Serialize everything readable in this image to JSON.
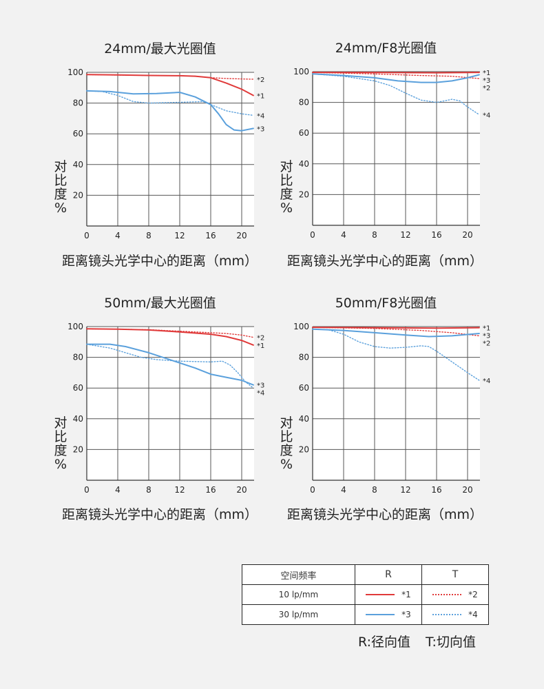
{
  "colors": {
    "red": "#e03a3a",
    "blue": "#5aa0dc",
    "grid": "#555555",
    "background": "#f2f2f2",
    "plot": "#ffffff"
  },
  "common": {
    "ylabel": "对比度%",
    "xlabel": "距离镜头光学中心的距离（mm）",
    "xticks": [
      0,
      4,
      8,
      12,
      16,
      20
    ],
    "yticks": [
      20,
      40,
      60,
      80,
      100
    ]
  },
  "legend": {
    "header": [
      "空间频率",
      "R",
      "T"
    ],
    "rows": [
      {
        "freq": "10 lp/mm",
        "r_key": "*1",
        "t_key": "*2"
      },
      {
        "freq": "30 lp/mm",
        "r_key": "*3",
        "t_key": "*4"
      }
    ],
    "footnote": [
      "R:径向值",
      "T:切向值"
    ]
  },
  "chart_data": [
    {
      "type": "line",
      "title": "24mm/最大光圈值",
      "xlabel": "距离镜头光学中心的距离（mm）",
      "ylabel": "对比度%",
      "xlim": [
        0,
        21.6
      ],
      "ylim": [
        0,
        100
      ],
      "series": [
        {
          "name": "*1",
          "style": "solid",
          "color": "red",
          "points": [
            [
              0,
              98.5
            ],
            [
              4,
              98.3
            ],
            [
              8,
              98
            ],
            [
              12,
              97.8
            ],
            [
              14,
              97.5
            ],
            [
              16,
              96.5
            ],
            [
              18,
              93
            ],
            [
              20,
              89
            ],
            [
              21.5,
              85
            ]
          ]
        },
        {
          "name": "*2",
          "style": "dotted",
          "color": "red",
          "points": [
            [
              0,
              98.5
            ],
            [
              4,
              98.2
            ],
            [
              8,
              98
            ],
            [
              12,
              97.8
            ],
            [
              14,
              97.5
            ],
            [
              16,
              96.5
            ],
            [
              18,
              96
            ],
            [
              20,
              95.7
            ],
            [
              21.5,
              95.5
            ]
          ]
        },
        {
          "name": "*3",
          "style": "solid",
          "color": "blue",
          "points": [
            [
              0,
              88
            ],
            [
              3,
              87.5
            ],
            [
              6,
              86
            ],
            [
              9,
              86.2
            ],
            [
              12,
              87
            ],
            [
              14,
              84
            ],
            [
              16,
              79
            ],
            [
              17,
              73
            ],
            [
              18,
              66
            ],
            [
              19,
              62.5
            ],
            [
              20,
              62
            ],
            [
              21.5,
              63.5
            ]
          ]
        },
        {
          "name": "*4",
          "style": "dotted",
          "color": "blue",
          "points": [
            [
              0,
              88
            ],
            [
              2,
              87.5
            ],
            [
              4,
              85
            ],
            [
              6,
              81
            ],
            [
              8,
              80
            ],
            [
              12,
              80.5
            ],
            [
              15,
              81
            ],
            [
              16,
              79
            ],
            [
              17,
              77
            ],
            [
              18,
              75
            ],
            [
              20,
              73
            ],
            [
              21.5,
              72
            ]
          ]
        }
      ],
      "label_order": [
        "*2",
        "*1",
        "*4",
        "*3"
      ]
    },
    {
      "type": "line",
      "title": "24mm/F8光圈值",
      "xlabel": "距离镜头光学中心的距离（mm）",
      "ylabel": "对比度%",
      "xlim": [
        0,
        21.6
      ],
      "ylim": [
        0,
        100
      ],
      "series": [
        {
          "name": "*1",
          "style": "solid",
          "color": "red",
          "points": [
            [
              0,
              99.5
            ],
            [
              8,
              99.4
            ],
            [
              16,
              99.3
            ],
            [
              21.5,
              99.5
            ]
          ]
        },
        {
          "name": "*2",
          "style": "dotted",
          "color": "red",
          "points": [
            [
              0,
              99.5
            ],
            [
              8,
              98.5
            ],
            [
              14,
              97.5
            ],
            [
              18,
              97
            ],
            [
              21.5,
              95.5
            ]
          ]
        },
        {
          "name": "*3",
          "style": "solid",
          "color": "blue",
          "points": [
            [
              0,
              98.5
            ],
            [
              4,
              97.5
            ],
            [
              8,
              96
            ],
            [
              11,
              94
            ],
            [
              14,
              93
            ],
            [
              16,
              93
            ],
            [
              18,
              94
            ],
            [
              20,
              96
            ],
            [
              21.5,
              98
            ]
          ]
        },
        {
          "name": "*4",
          "style": "dotted",
          "color": "blue",
          "points": [
            [
              0,
              98.5
            ],
            [
              4,
              97
            ],
            [
              8,
              94
            ],
            [
              10,
              91
            ],
            [
              12,
              86
            ],
            [
              14,
              81.5
            ],
            [
              16,
              80
            ],
            [
              17,
              81
            ],
            [
              18,
              82
            ],
            [
              19,
              81
            ],
            [
              20,
              77
            ],
            [
              21.5,
              72
            ]
          ]
        }
      ],
      "label_order": [
        "*1",
        "*3",
        "*2",
        "*4"
      ]
    },
    {
      "type": "line",
      "title": "50mm/最大光圈值",
      "xlabel": "距离镜头光学中心的距离（mm）",
      "ylabel": "对比度%",
      "xlim": [
        0,
        21.6
      ],
      "ylim": [
        0,
        100
      ],
      "series": [
        {
          "name": "*1",
          "style": "solid",
          "color": "red",
          "points": [
            [
              0,
              98.5
            ],
            [
              4,
              98.3
            ],
            [
              8,
              97.8
            ],
            [
              12,
              96.5
            ],
            [
              16,
              95
            ],
            [
              18,
              93.5
            ],
            [
              20,
              91
            ],
            [
              21.5,
              88
            ]
          ]
        },
        {
          "name": "*2",
          "style": "dotted",
          "color": "red",
          "points": [
            [
              0,
              98.5
            ],
            [
              4,
              98.3
            ],
            [
              8,
              98
            ],
            [
              12,
              97
            ],
            [
              16,
              96
            ],
            [
              18,
              95.5
            ],
            [
              20,
              94.5
            ],
            [
              21.5,
              93
            ]
          ]
        },
        {
          "name": "*3",
          "style": "solid",
          "color": "blue",
          "points": [
            [
              0,
              88.5
            ],
            [
              3,
              88.5
            ],
            [
              5,
              87
            ],
            [
              8,
              83
            ],
            [
              11,
              78
            ],
            [
              14,
              73
            ],
            [
              16,
              69
            ],
            [
              18,
              67
            ],
            [
              20,
              65
            ],
            [
              21.5,
              62
            ]
          ]
        },
        {
          "name": "*4",
          "style": "dotted",
          "color": "blue",
          "points": [
            [
              0,
              88.5
            ],
            [
              3,
              86
            ],
            [
              5,
              83
            ],
            [
              7,
              80
            ],
            [
              9,
              78.5
            ],
            [
              12,
              77.5
            ],
            [
              16,
              77
            ],
            [
              17.5,
              77.5
            ],
            [
              18.5,
              75
            ],
            [
              19.5,
              70
            ],
            [
              20.5,
              64
            ],
            [
              21.5,
              60
            ]
          ]
        }
      ],
      "label_order": [
        "*2",
        "*1",
        "*3",
        "*4"
      ]
    },
    {
      "type": "line",
      "title": "50mm/F8光圈值",
      "xlabel": "距离镜头光学中心的距离（mm）",
      "ylabel": "对比度%",
      "xlim": [
        0,
        21.6
      ],
      "ylim": [
        0,
        100
      ],
      "series": [
        {
          "name": "*1",
          "style": "solid",
          "color": "red",
          "points": [
            [
              0,
              99.5
            ],
            [
              8,
              99.3
            ],
            [
              16,
              99
            ],
            [
              21.5,
              99.3
            ]
          ]
        },
        {
          "name": "*2",
          "style": "dotted",
          "color": "red",
          "points": [
            [
              0,
              99.5
            ],
            [
              8,
              98.8
            ],
            [
              14,
              97.5
            ],
            [
              18,
              96
            ],
            [
              21.5,
              94
            ]
          ]
        },
        {
          "name": "*3",
          "style": "solid",
          "color": "blue",
          "points": [
            [
              0,
              98.3
            ],
            [
              4,
              97.5
            ],
            [
              8,
              96
            ],
            [
              12,
              94.5
            ],
            [
              15,
              93.5
            ],
            [
              18,
              94
            ],
            [
              21.5,
              95.5
            ]
          ]
        },
        {
          "name": "*4",
          "style": "dotted",
          "color": "blue",
          "points": [
            [
              0,
              98.3
            ],
            [
              2,
              98
            ],
            [
              4,
              95
            ],
            [
              6,
              90
            ],
            [
              8,
              87
            ],
            [
              10,
              86
            ],
            [
              12,
              86.5
            ],
            [
              14,
              87.5
            ],
            [
              15,
              87
            ],
            [
              16,
              84
            ],
            [
              18,
              77
            ],
            [
              20,
              70
            ],
            [
              21.5,
              65
            ]
          ]
        }
      ],
      "label_order": [
        "*1",
        "*3",
        "*2",
        "*4"
      ]
    }
  ]
}
